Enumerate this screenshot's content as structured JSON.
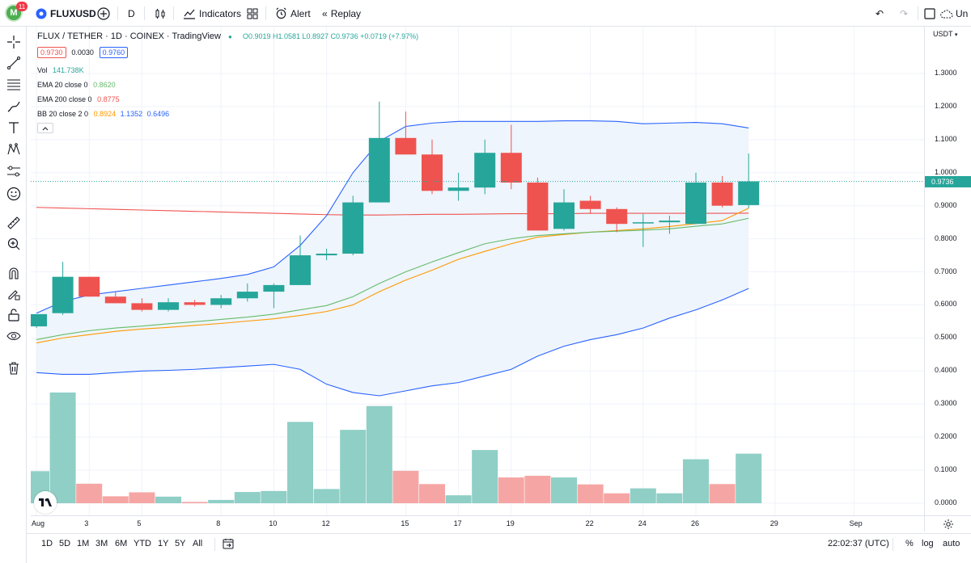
{
  "topbar": {
    "avatar_letter": "M",
    "notification_count": "11",
    "symbol": "FLUXUSD",
    "interval": "D",
    "indicators_label": "Indicators",
    "alert_label": "Alert",
    "replay_label": "Replay",
    "unnamed_label": "Un"
  },
  "legend": {
    "title": "FLUX / TETHER · 1D · COINEX · TradingView",
    "ohlc": "O0.9019  H1.0581  L0.8927  C0.9736  +0.0719 (+7.97%)",
    "bid": "0.9730",
    "spread": "0.0030",
    "ask": "0.9760",
    "vol_label": "Vol",
    "vol_value": "141.738K",
    "ema20_label": "EMA 20 close 0",
    "ema20_value": "0.8620",
    "ema200_label": "EMA 200 close 0",
    "ema200_value": "0.8775",
    "bb_label": "BB 20 close 2 0",
    "bb_basis": "0.8924",
    "bb_upper": "1.1352",
    "bb_lower": "0.6496",
    "collapse_icon": "chevron-up-icon"
  },
  "price_scale": {
    "currency": "USDT",
    "current_price": "0.9736",
    "ticks": [
      "1.3000",
      "1.2000",
      "1.1000",
      "1.0000",
      "0.9000",
      "0.8000",
      "0.7000",
      "0.6000",
      "0.5000",
      "0.4000",
      "0.3000",
      "0.2000",
      "0.1000",
      "0.0000"
    ]
  },
  "time_scale": {
    "labels": [
      "Aug",
      "3",
      "5",
      "8",
      "10",
      "12",
      "15",
      "17",
      "19",
      "22",
      "24",
      "26",
      "29",
      "Sep"
    ],
    "clock": "22:02:37 (UTC)"
  },
  "bottom_bar": {
    "timeframes": [
      "1D",
      "5D",
      "1M",
      "3M",
      "6M",
      "YTD",
      "1Y",
      "5Y",
      "All"
    ],
    "percent": "%",
    "log": "log",
    "auto": "auto"
  },
  "colors": {
    "up": "#26a69a",
    "down": "#ef5350",
    "vol_up": "#8fcfc6",
    "vol_down": "#f5a6a4",
    "ema20": "#66bb6a",
    "ema200": "#ef5350",
    "bb_basis": "#ff9800",
    "bb_bands": "#2962ff",
    "bb_fill": "#eef5fc"
  },
  "chart_data": {
    "type": "candlestick",
    "candles": [
      {
        "o": 0.535,
        "h": 0.57,
        "l": 0.53,
        "c": 0.572
      },
      {
        "o": 0.575,
        "h": 0.73,
        "l": 0.57,
        "c": 0.685
      },
      {
        "o": 0.685,
        "h": 0.685,
        "l": 0.625,
        "c": 0.625
      },
      {
        "o": 0.625,
        "h": 0.64,
        "l": 0.605,
        "c": 0.605
      },
      {
        "o": 0.605,
        "h": 0.62,
        "l": 0.58,
        "c": 0.585
      },
      {
        "o": 0.585,
        "h": 0.62,
        "l": 0.58,
        "c": 0.608
      },
      {
        "o": 0.608,
        "h": 0.615,
        "l": 0.595,
        "c": 0.6
      },
      {
        "o": 0.6,
        "h": 0.63,
        "l": 0.59,
        "c": 0.62
      },
      {
        "o": 0.62,
        "h": 0.665,
        "l": 0.61,
        "c": 0.64
      },
      {
        "o": 0.64,
        "h": 0.665,
        "l": 0.59,
        "c": 0.66
      },
      {
        "o": 0.66,
        "h": 0.81,
        "l": 0.66,
        "c": 0.75
      },
      {
        "o": 0.75,
        "h": 0.77,
        "l": 0.735,
        "c": 0.755
      },
      {
        "o": 0.755,
        "h": 0.93,
        "l": 0.75,
        "c": 0.91
      },
      {
        "o": 0.91,
        "h": 1.215,
        "l": 0.91,
        "c": 1.105
      },
      {
        "o": 1.105,
        "h": 1.185,
        "l": 1.055,
        "c": 1.055
      },
      {
        "o": 1.055,
        "h": 1.1,
        "l": 0.935,
        "c": 0.945
      },
      {
        "o": 0.945,
        "h": 1.0,
        "l": 0.915,
        "c": 0.955
      },
      {
        "o": 0.955,
        "h": 1.1,
        "l": 0.935,
        "c": 1.06
      },
      {
        "o": 1.06,
        "h": 1.145,
        "l": 0.95,
        "c": 0.97
      },
      {
        "o": 0.97,
        "h": 0.985,
        "l": 0.825,
        "c": 0.825
      },
      {
        "o": 0.83,
        "h": 0.95,
        "l": 0.825,
        "c": 0.91
      },
      {
        "o": 0.915,
        "h": 0.93,
        "l": 0.875,
        "c": 0.89
      },
      {
        "o": 0.89,
        "h": 0.895,
        "l": 0.82,
        "c": 0.845
      },
      {
        "o": 0.85,
        "h": 0.875,
        "l": 0.775,
        "c": 0.85
      },
      {
        "o": 0.85,
        "h": 0.87,
        "l": 0.815,
        "c": 0.855
      },
      {
        "o": 0.845,
        "h": 1.0,
        "l": 0.845,
        "c": 0.97
      },
      {
        "o": 0.97,
        "h": 0.99,
        "l": 0.895,
        "c": 0.9
      },
      {
        "o": 0.9019,
        "h": 1.0581,
        "l": 0.8927,
        "c": 0.9736
      }
    ],
    "volume": [
      0.097,
      0.335,
      0.059,
      0.021,
      0.033,
      0.02,
      0.004,
      0.01,
      0.034,
      0.037,
      0.246,
      0.043,
      0.222,
      0.294,
      0.098,
      0.058,
      0.024,
      0.161,
      0.078,
      0.083,
      0.078,
      0.057,
      0.03,
      0.045,
      0.03,
      0.133,
      0.058,
      0.15
    ],
    "ema20": [
      0.495,
      0.51,
      0.522,
      0.53,
      0.536,
      0.543,
      0.549,
      0.556,
      0.563,
      0.572,
      0.585,
      0.598,
      0.625,
      0.665,
      0.7,
      0.73,
      0.758,
      0.785,
      0.8,
      0.81,
      0.815,
      0.82,
      0.823,
      0.826,
      0.83,
      0.838,
      0.845,
      0.862
    ],
    "ema200": [
      0.895,
      0.893,
      0.891,
      0.889,
      0.887,
      0.885,
      0.883,
      0.881,
      0.879,
      0.877,
      0.875,
      0.873,
      0.872,
      0.872,
      0.873,
      0.874,
      0.874,
      0.875,
      0.876,
      0.876,
      0.876,
      0.877,
      0.877,
      0.877,
      0.877,
      0.877,
      0.877,
      0.8775
    ],
    "bb_basis": [
      0.485,
      0.5,
      0.51,
      0.52,
      0.527,
      0.532,
      0.538,
      0.544,
      0.551,
      0.558,
      0.568,
      0.58,
      0.6,
      0.64,
      0.675,
      0.705,
      0.738,
      0.762,
      0.785,
      0.805,
      0.813,
      0.82,
      0.825,
      0.83,
      0.837,
      0.846,
      0.855,
      0.8924
    ],
    "bb_upper": [
      0.575,
      0.61,
      0.63,
      0.64,
      0.65,
      0.66,
      0.67,
      0.68,
      0.692,
      0.715,
      0.78,
      0.87,
      1.0,
      1.095,
      1.14,
      1.15,
      1.155,
      1.155,
      1.155,
      1.155,
      1.157,
      1.157,
      1.155,
      1.148,
      1.15,
      1.152,
      1.148,
      1.1352
    ],
    "bb_lower": [
      0.395,
      0.39,
      0.39,
      0.395,
      0.4,
      0.402,
      0.405,
      0.41,
      0.415,
      0.42,
      0.405,
      0.36,
      0.335,
      0.325,
      0.34,
      0.355,
      0.365,
      0.385,
      0.405,
      0.445,
      0.475,
      0.495,
      0.51,
      0.53,
      0.56,
      0.585,
      0.615,
      0.6496
    ],
    "price_range": [
      0.0,
      1.3
    ],
    "currency": "USDT"
  }
}
